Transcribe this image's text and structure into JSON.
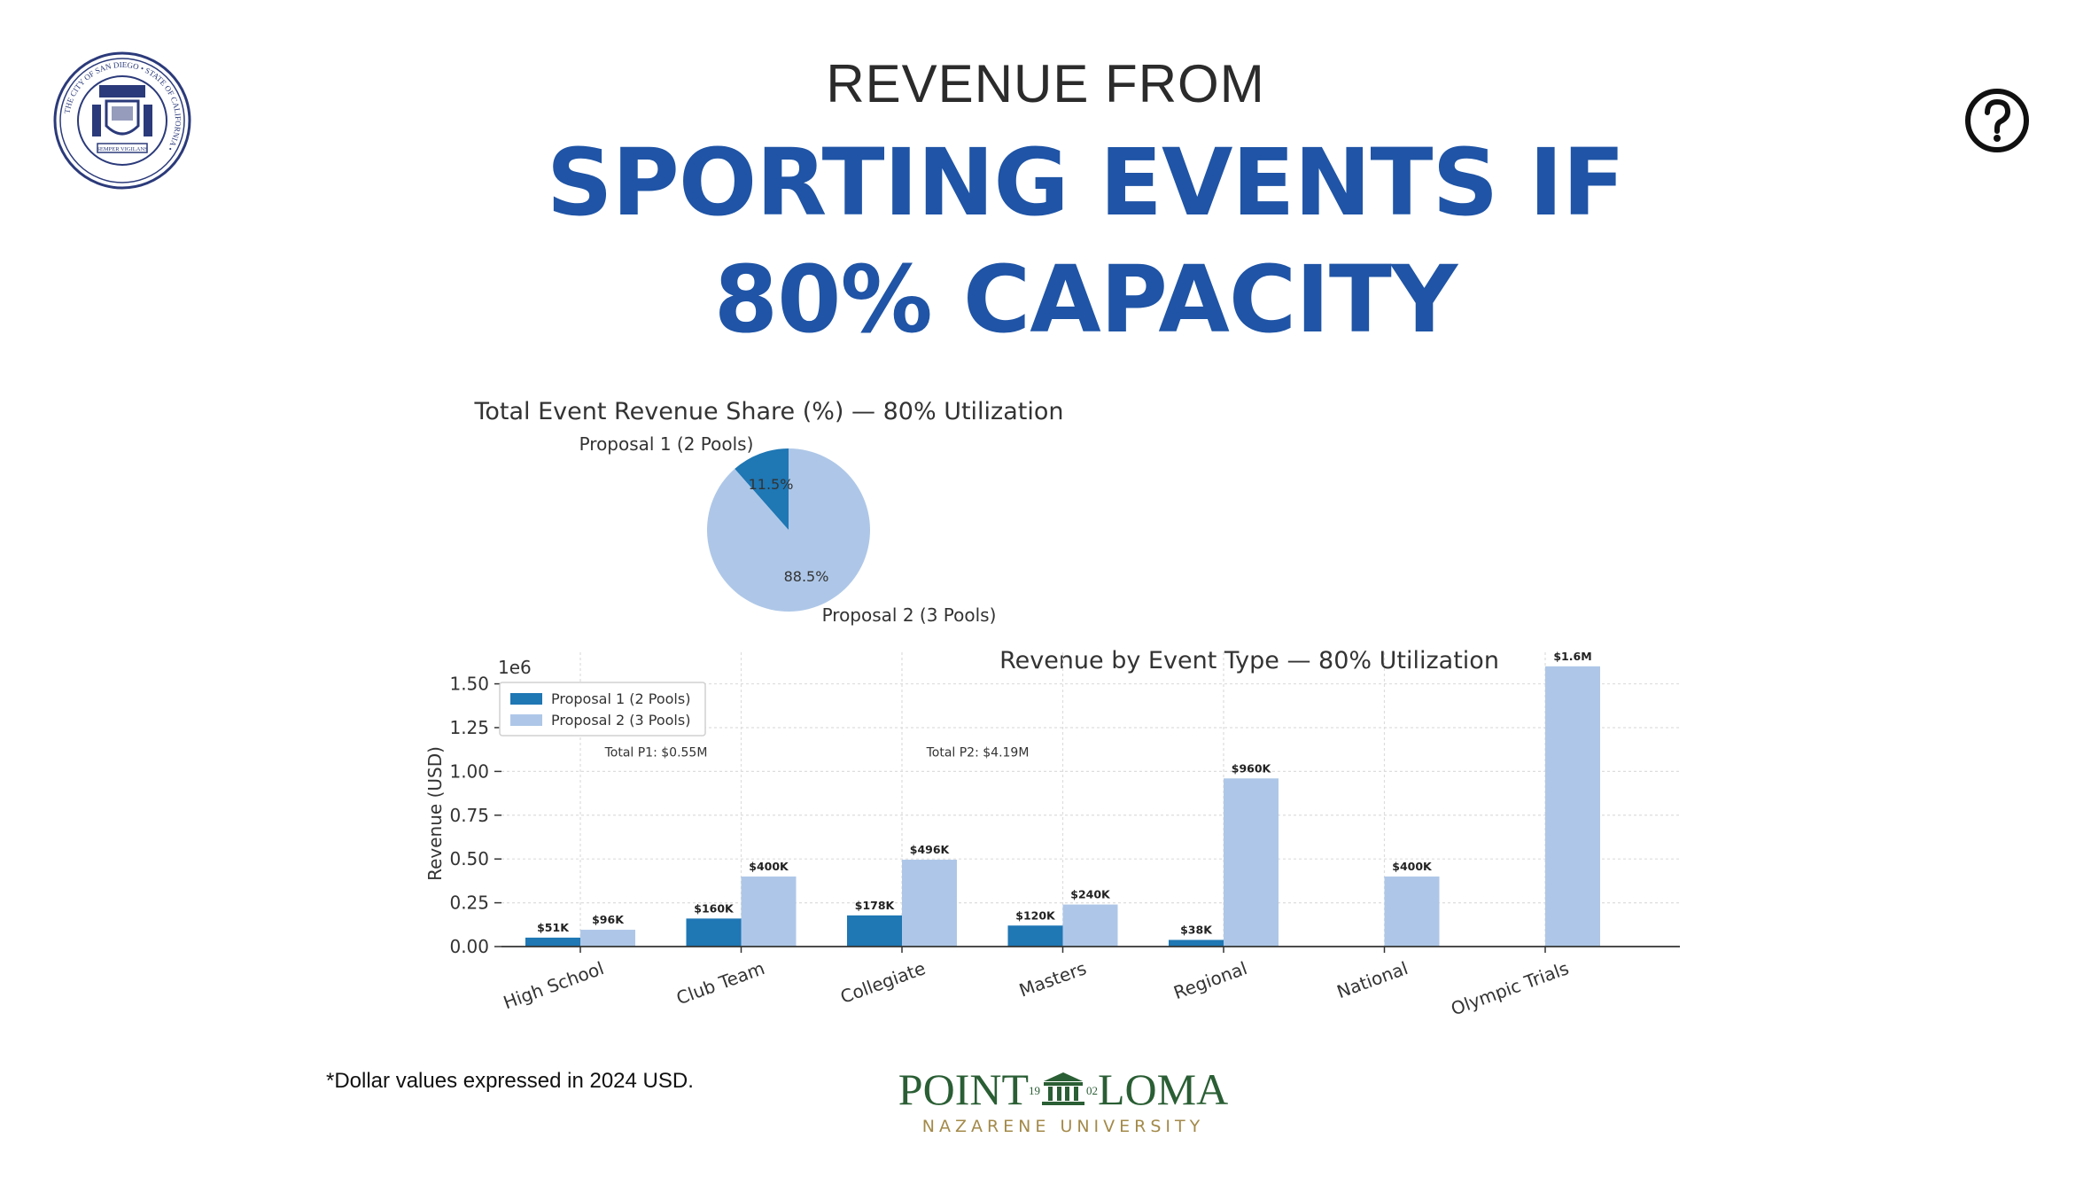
{
  "header": {
    "title_line1": "REVENUE FROM",
    "title_line2a": "SPORTING EVENTS IF",
    "title_line2b": "80% CAPACITY"
  },
  "seal": {
    "ring_text": "THE CITY OF SAN DIEGO • STATE OF CALIFORNIA •",
    "motto": "SEMPER VIGILANS"
  },
  "icons": {
    "help": "help-circle-icon",
    "seal": "city-seal-icon",
    "logo": "university-logo"
  },
  "footer": {
    "note": "*Dollar values expressed in 2024 USD.",
    "logo_word1": "POINT",
    "logo_year1": "19",
    "logo_year2": "02",
    "logo_word2": "LOMA",
    "logo_sub": "NAZARENE UNIVERSITY"
  },
  "chart_data": [
    {
      "type": "pie",
      "title": "Total Event Revenue Share (%) — 80% Utilization",
      "slices": [
        {
          "label": "Proposal 1 (2 Pools)",
          "value": 11.5,
          "value_label": "11.5%",
          "color": "#1f77b4"
        },
        {
          "label": "Proposal 2 (3 Pools)",
          "value": 88.5,
          "value_label": "88.5%",
          "color": "#aec7e8"
        }
      ]
    },
    {
      "type": "bar",
      "title": "Revenue by Event Type — 80% Utilization",
      "ylabel": "Revenue (USD)",
      "xlabel": "",
      "offset_text": "1e6",
      "ylim": [
        0,
        1.68
      ],
      "yticks": [
        0.0,
        0.25,
        0.5,
        0.75,
        1.0,
        1.25,
        1.5
      ],
      "ytick_labels": [
        "0.00",
        "0.25",
        "0.50",
        "0.75",
        "1.00",
        "1.25",
        "1.50"
      ],
      "grid": true,
      "legend_position": "top-left",
      "categories": [
        "High School",
        "Club Team",
        "Collegiate",
        "Masters",
        "Regional",
        "National",
        "Olympic Trials"
      ],
      "series": [
        {
          "name": "Proposal 1 (2 Pools)",
          "color": "#1f77b4",
          "values": [
            0.051,
            0.16,
            0.178,
            0.12,
            0.038,
            null,
            null
          ],
          "labels": [
            "$51K",
            "$160K",
            "$178K",
            "$120K",
            "$38K",
            "",
            ""
          ]
        },
        {
          "name": "Proposal 2 (3 Pools)",
          "color": "#aec7e8",
          "values": [
            0.096,
            0.4,
            0.496,
            0.24,
            0.96,
            0.4,
            1.6
          ],
          "labels": [
            "$96K",
            "$400K",
            "$496K",
            "$240K",
            "$960K",
            "$400K",
            "$1.6M"
          ]
        }
      ],
      "annotations": [
        {
          "text": "Total P1: $0.55M",
          "x_category": 0.4,
          "y": 1.11
        },
        {
          "text": "Total P2: $4.19M",
          "x_category": 2.4,
          "y": 1.11
        }
      ]
    }
  ]
}
